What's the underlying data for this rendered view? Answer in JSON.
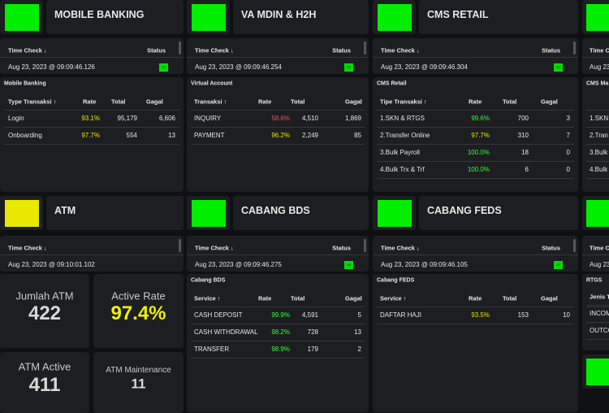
{
  "panels": [
    {
      "title": "MOBILE BANKING",
      "indicator_color": "#00ee00",
      "time_check": {
        "label": "Time Check ↓",
        "status_label": "Status",
        "timestamp": "Aug 23, 2023 @ 09:09:46.126",
        "status": "up"
      },
      "table": {
        "caption": "Mobile Banking",
        "columns": [
          "Type Transaksi ↑",
          "Rate",
          "Total",
          "Gagal"
        ],
        "rows": [
          {
            "name": "Login",
            "rate": "93.1%",
            "total": "95,179",
            "gagal": "6,606",
            "rate_color": "#e6e600"
          },
          {
            "name": "Onboarding",
            "rate": "97.7%",
            "total": "554",
            "gagal": "13",
            "rate_color": "#e6e600"
          }
        ]
      }
    },
    {
      "title": "VA MDIN & H2H",
      "indicator_color": "#00ee00",
      "time_check": {
        "label": "Time Check ↓",
        "status_label": "Status",
        "timestamp": "Aug 23, 2023 @ 09:09:46.254",
        "status": "up"
      },
      "table": {
        "caption": "Virtual Account",
        "columns": [
          "Transaksi ↑",
          "Rate",
          "Total",
          "Gagal"
        ],
        "rows": [
          {
            "name": "INQUIRY",
            "rate": "58.6%",
            "total": "4,510",
            "gagal": "1,869",
            "rate_color": "#ff4d4d"
          },
          {
            "name": "PAYMENT",
            "rate": "96.2%",
            "total": "2,249",
            "gagal": "85",
            "rate_color": "#e6e600"
          }
        ]
      }
    },
    {
      "title": "CMS RETAIL",
      "indicator_color": "#00ee00",
      "time_check": {
        "label": "Time Check ↓",
        "status_label": "Status",
        "timestamp": "Aug 23, 2023 @ 09:09:46.304",
        "status": "up"
      },
      "table": {
        "caption": "CMS Retail",
        "columns": [
          "Tipe Transaksi ↑",
          "Rate",
          "Total",
          "Gagal"
        ],
        "rows": [
          {
            "name": "1.SKN & RTGS",
            "rate": "99.6%",
            "total": "700",
            "gagal": "3",
            "rate_color": "#33ff33"
          },
          {
            "name": "2.Transfer Online",
            "rate": "97.7%",
            "total": "310",
            "gagal": "7",
            "rate_color": "#e6e600"
          },
          {
            "name": "3.Bulk Payroll",
            "rate": "100.0%",
            "total": "18",
            "gagal": "0",
            "rate_color": "#33ff33"
          },
          {
            "name": "4.Bulk Trx & Trf",
            "rate": "100.0%",
            "total": "6",
            "gagal": "0",
            "rate_color": "#33ff33"
          }
        ]
      }
    },
    {
      "title": "ATM",
      "indicator_color": "#e8e800",
      "time_check": {
        "label": "Time Check ↓",
        "timestamp": "Aug 23, 2023 @ 09:10:01.102"
      },
      "tiles": [
        {
          "label": "Jumlah ATM",
          "value": "422",
          "color": "#d8d8d8"
        },
        {
          "label": "Active Rate",
          "value": "97.4%",
          "color": "#f0f000"
        },
        {
          "label": "ATM Active",
          "value": "411",
          "color": "#d8d8d8"
        },
        {
          "label": "ATM Maintenance",
          "value": "11",
          "color": "#d8d8d8"
        }
      ]
    },
    {
      "title": "CABANG BDS",
      "indicator_color": "#00ee00",
      "time_check": {
        "label": "Time Check ↓",
        "status_label": "Status",
        "timestamp": "Aug 23, 2023 @ 09:09:46.275",
        "status": "up"
      },
      "table": {
        "caption": "Cabang BDS",
        "columns": [
          "Service ↑",
          "Rate",
          "Total",
          "Gagal"
        ],
        "rows": [
          {
            "name": "CASH DEPOSIT",
            "rate": "99.9%",
            "total": "4,591",
            "gagal": "5",
            "rate_color": "#33ff33"
          },
          {
            "name": "CASH WITHDRAWAL",
            "rate": "98.2%",
            "total": "728",
            "gagal": "13",
            "rate_color": "#33ff33"
          },
          {
            "name": "TRANSFER",
            "rate": "98.9%",
            "total": "179",
            "gagal": "2",
            "rate_color": "#33ff33"
          }
        ]
      }
    },
    {
      "title": "CABANG FEDS",
      "indicator_color": "#00ee00",
      "time_check": {
        "label": "Time Check ↓",
        "status_label": "Status",
        "timestamp": "Aug 23, 2023 @ 09:09:46.105",
        "status": "up"
      },
      "table": {
        "caption": "Cabang FEDS",
        "columns": [
          "Service ↑",
          "Rate",
          "Total",
          "Gagal"
        ],
        "rows": [
          {
            "name": "DAFTAR HAJI",
            "rate": "93.5%",
            "total": "153",
            "gagal": "10",
            "rate_color": "#e6e600"
          }
        ]
      }
    }
  ],
  "edge_panels": [
    {
      "time_label": "Time C",
      "timestamp": "Aug 23,",
      "caption": "CMS Ma",
      "rows": [
        "1.SKN",
        "2.Tran",
        "3.Bulk",
        "4.Bulk"
      ]
    },
    {
      "time_label": "Time C",
      "timestamp": "Aug 23,",
      "caption": "RTGS",
      "header": "Jenis T",
      "rows": [
        "INCOM",
        "OUTCO"
      ]
    }
  ]
}
